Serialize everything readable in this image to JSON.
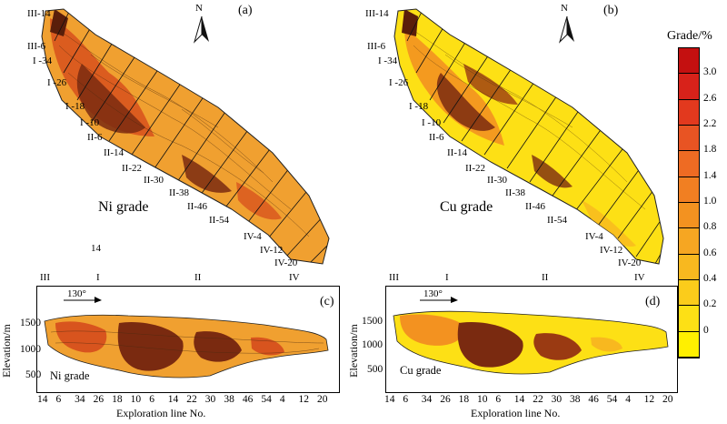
{
  "panels": {
    "a": {
      "label": "(a)",
      "grade_text": "Ni grade"
    },
    "b": {
      "label": "(b)",
      "grade_text": "Cu grade"
    },
    "c": {
      "label": "(c)",
      "grade_text": "Ni grade"
    },
    "d": {
      "label": "(d)",
      "grade_text": "Cu grade"
    }
  },
  "north_label": "N",
  "stray_label": "14",
  "line_labels": [
    "III-14",
    "III-6",
    "I -34",
    "I -26",
    "I -18",
    "I -10",
    "II-6",
    "II-14",
    "II-22",
    "II-30",
    "II-38",
    "II-46",
    "II-54",
    "IV-4",
    "IV-12",
    "IV-20"
  ],
  "zones": [
    "III",
    "I",
    "II",
    "IV"
  ],
  "section": {
    "ylabel": "Elevation/m",
    "yticks": [
      "1500",
      "1000",
      "500"
    ],
    "xlabel": "Exploration line No.",
    "xticks": [
      "14",
      "6",
      "34",
      "26",
      "18",
      "10",
      "6",
      "14",
      "22",
      "30",
      "38",
      "46",
      "54",
      "4",
      "12",
      "20"
    ],
    "angle": "130°"
  },
  "legend": {
    "title": "Grade/%",
    "labels": [
      "3.0",
      "2.6",
      "2.2",
      "1.8",
      "1.4",
      "1.0",
      "0.8",
      "0.6",
      "0.4",
      "0.2",
      "0"
    ],
    "colors": [
      "#c41010",
      "#d8221a",
      "#e2391e",
      "#e85423",
      "#ee6b23",
      "#f17f22",
      "#f39220",
      "#f6a622",
      "#f8b81f",
      "#fbcc1b",
      "#fde015",
      "#fff000"
    ]
  }
}
